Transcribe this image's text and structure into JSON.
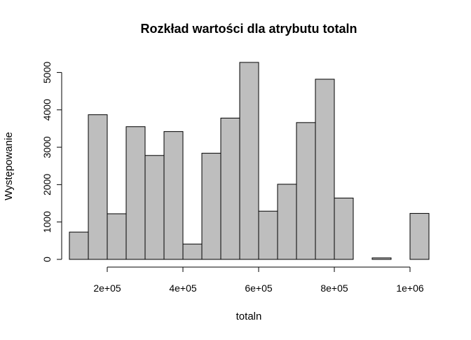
{
  "chart_data": {
    "type": "bar",
    "subtype": "histogram",
    "title": "Rozkład wartości dla atrybutu totaln",
    "xlabel": "totaln",
    "ylabel": "Występowanie",
    "bins": [
      {
        "start": 100000,
        "end": 150000,
        "count": 730
      },
      {
        "start": 150000,
        "end": 200000,
        "count": 3870
      },
      {
        "start": 200000,
        "end": 250000,
        "count": 1220
      },
      {
        "start": 250000,
        "end": 300000,
        "count": 3550
      },
      {
        "start": 300000,
        "end": 350000,
        "count": 2780
      },
      {
        "start": 350000,
        "end": 400000,
        "count": 3420
      },
      {
        "start": 400000,
        "end": 450000,
        "count": 410
      },
      {
        "start": 450000,
        "end": 500000,
        "count": 2840
      },
      {
        "start": 500000,
        "end": 550000,
        "count": 3780
      },
      {
        "start": 550000,
        "end": 600000,
        "count": 5270
      },
      {
        "start": 600000,
        "end": 650000,
        "count": 1290
      },
      {
        "start": 650000,
        "end": 700000,
        "count": 2010
      },
      {
        "start": 700000,
        "end": 750000,
        "count": 3660
      },
      {
        "start": 750000,
        "end": 800000,
        "count": 4820
      },
      {
        "start": 800000,
        "end": 850000,
        "count": 1640
      },
      {
        "start": 850000,
        "end": 900000,
        "count": 0
      },
      {
        "start": 900000,
        "end": 950000,
        "count": 40
      },
      {
        "start": 950000,
        "end": 1000000,
        "count": 0
      },
      {
        "start": 1000000,
        "end": 1050000,
        "count": 1230
      }
    ],
    "xlim": [
      100000,
      1050000
    ],
    "ylim": [
      0,
      5270
    ],
    "x_ticks": [
      {
        "value": 200000,
        "label": "2e+05"
      },
      {
        "value": 400000,
        "label": "4e+05"
      },
      {
        "value": 600000,
        "label": "6e+05"
      },
      {
        "value": 800000,
        "label": "8e+05"
      },
      {
        "value": 1000000,
        "label": "1e+06"
      }
    ],
    "y_ticks": [
      {
        "value": 0,
        "label": "0"
      },
      {
        "value": 1000,
        "label": "1000"
      },
      {
        "value": 2000,
        "label": "2000"
      },
      {
        "value": 3000,
        "label": "3000"
      },
      {
        "value": 4000,
        "label": "4000"
      },
      {
        "value": 5000,
        "label": "5000"
      }
    ],
    "bar_fill": "#bebebe",
    "bar_stroke": "#000000",
    "grid": false,
    "legend": "none"
  }
}
